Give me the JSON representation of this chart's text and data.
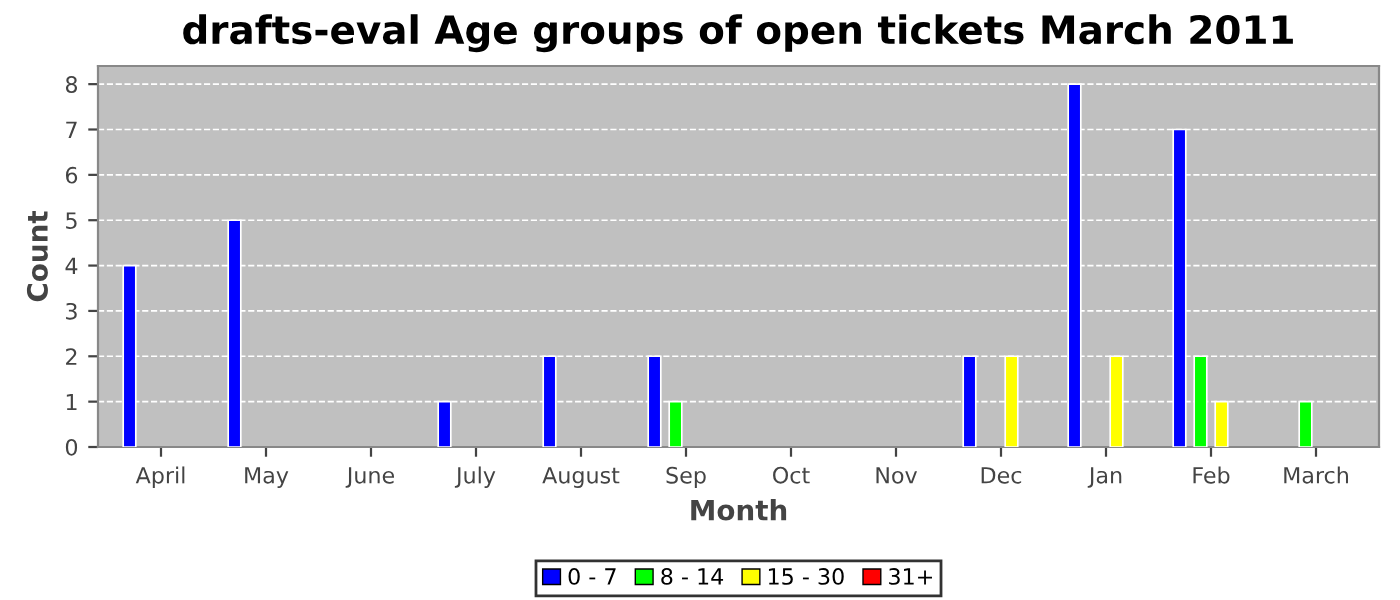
{
  "chart_data": {
    "type": "bar",
    "title": "drafts-eval Age groups of open tickets March 2011",
    "xlabel": "Month",
    "ylabel": "Count",
    "categories": [
      "April",
      "May",
      "June",
      "July",
      "August",
      "Sep",
      "Oct",
      "Nov",
      "Dec",
      "Jan",
      "Feb",
      "March"
    ],
    "series": [
      {
        "name": "0 - 7",
        "color": "#0000ff",
        "values": [
          4,
          5,
          0,
          1,
          2,
          2,
          0,
          0,
          2,
          8,
          7,
          0
        ]
      },
      {
        "name": "8 - 14",
        "color": "#00ff00",
        "values": [
          0,
          0,
          0,
          0,
          0,
          1,
          0,
          0,
          0,
          0,
          2,
          1
        ]
      },
      {
        "name": "15 - 30",
        "color": "#ffff00",
        "values": [
          0,
          0,
          0,
          0,
          0,
          0,
          0,
          0,
          2,
          2,
          1,
          0
        ]
      },
      {
        "name": "31+",
        "color": "#ff0000",
        "values": [
          0,
          0,
          0,
          0,
          0,
          0,
          0,
          0,
          0,
          0,
          0,
          0
        ]
      }
    ],
    "ylim": [
      0,
      8.4
    ],
    "yticks": [
      0,
      1,
      2,
      3,
      4,
      5,
      6,
      7,
      8
    ],
    "grid": "y",
    "legend": "bottom"
  }
}
